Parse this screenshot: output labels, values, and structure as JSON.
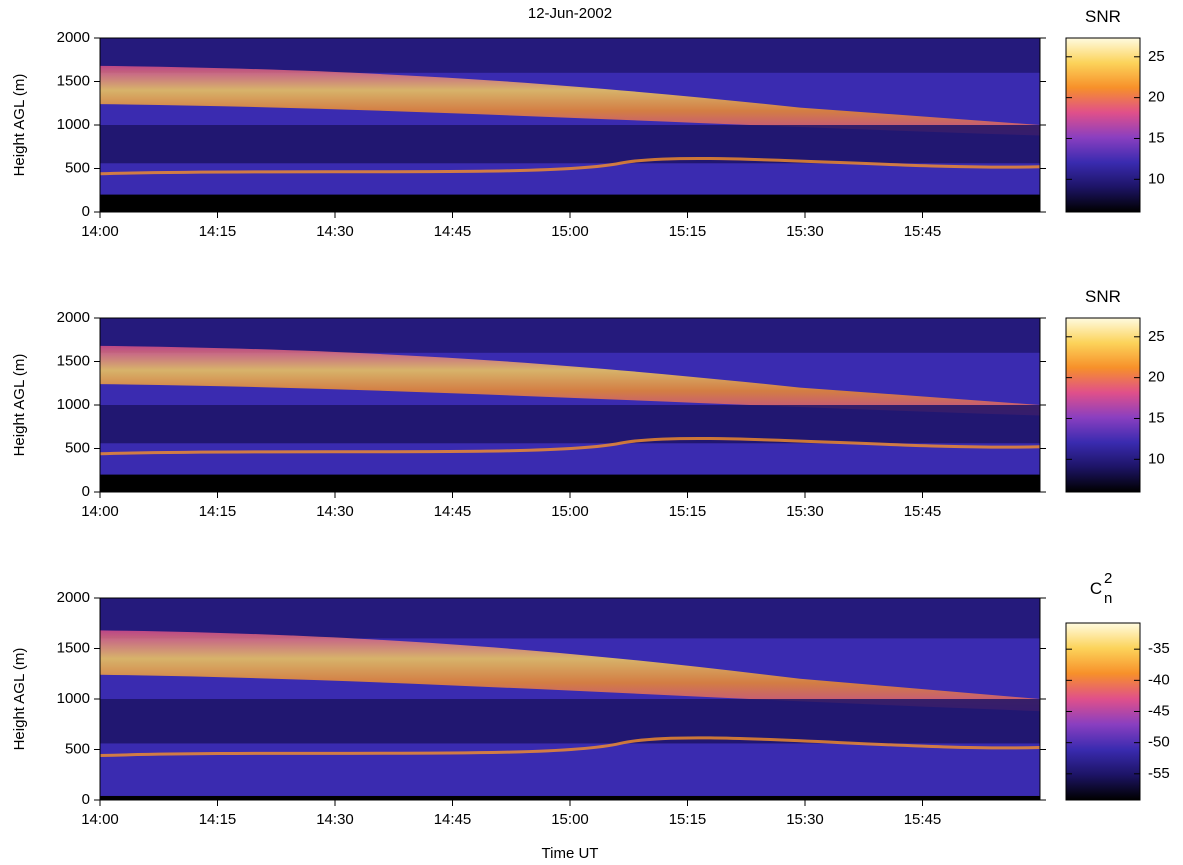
{
  "chart_data": [
    {
      "type": "heatmap",
      "title": "12-Jun-2002",
      "ylabel": "Height AGL (m)",
      "xlim": [
        "14:00",
        "16:00"
      ],
      "xticks": [
        "14:00",
        "14:15",
        "14:30",
        "14:45",
        "15:00",
        "15:15",
        "15:30",
        "15:45"
      ],
      "ylim": [
        0,
        2000
      ],
      "yticks": [
        0,
        500,
        1000,
        1500,
        2000
      ],
      "colorbar_label": "SNR",
      "clim": [
        6,
        27.3
      ],
      "cticks": [
        10,
        15,
        20,
        25
      ],
      "colormap": [
        "#000000",
        "#1d1466",
        "#3a2bb0",
        "#8a3fc0",
        "#e0508a",
        "#f7902a",
        "#fcd35a",
        "#fffbe0"
      ]
    },
    {
      "type": "heatmap",
      "ylabel": "Height AGL (m)",
      "xlim": [
        "14:00",
        "16:00"
      ],
      "xticks": [
        "14:00",
        "14:15",
        "14:30",
        "14:45",
        "15:00",
        "15:15",
        "15:30",
        "15:45"
      ],
      "ylim": [
        0,
        2000
      ],
      "yticks": [
        0,
        500,
        1000,
        1500,
        2000
      ],
      "colorbar_label": "SNR",
      "clim": [
        6,
        27.3
      ],
      "cticks": [
        10,
        15,
        20,
        25
      ],
      "colormap": [
        "#000000",
        "#1d1466",
        "#3a2bb0",
        "#8a3fc0",
        "#e0508a",
        "#f7902a",
        "#fcd35a",
        "#fffbe0"
      ]
    },
    {
      "type": "heatmap",
      "ylabel": "Height AGL (m)",
      "xlabel": "Time UT",
      "xlim": [
        "14:00",
        "16:00"
      ],
      "xticks": [
        "14:00",
        "14:15",
        "14:30",
        "14:45",
        "15:00",
        "15:15",
        "15:30",
        "15:45"
      ],
      "ylim": [
        0,
        2000
      ],
      "yticks": [
        0,
        500,
        1000,
        1500,
        2000
      ],
      "colorbar_label": "C",
      "colorbar_label_sub": "n",
      "colorbar_label_sup": "2",
      "clim": [
        -59.2,
        -30.8
      ],
      "cticks": [
        -35,
        -40,
        -45,
        -50,
        -55
      ],
      "colormap": [
        "#000000",
        "#1d1466",
        "#3a2bb0",
        "#8a3fc0",
        "#e0508a",
        "#f7902a",
        "#fcd35a",
        "#fffbe0"
      ]
    }
  ]
}
